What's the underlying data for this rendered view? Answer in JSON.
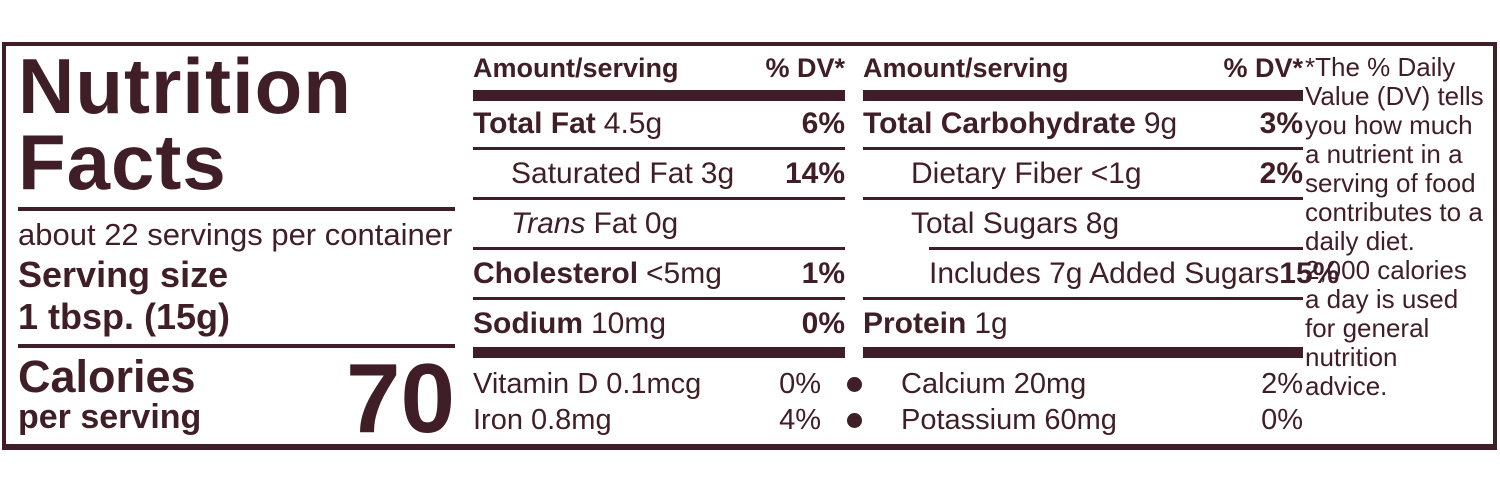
{
  "colors": {
    "ink": "#401E27",
    "background": "#FFFFFF"
  },
  "left_panel": {
    "title_line1": "Nutrition",
    "title_line2": "Facts",
    "servings_per_container": "about 22 servings per container",
    "serving_size_label": "Serving size",
    "serving_size_value": "1 tbsp. (15g)",
    "calories_label": "Calories",
    "calories_sublabel": "per serving",
    "calories_value": "70"
  },
  "column1": {
    "header": {
      "amount": "Amount/serving",
      "dv": "% DV*"
    },
    "rows": [
      {
        "name": "Total Fat",
        "amount": "4.5g",
        "dv": "6%"
      },
      {
        "name": "Saturated Fat",
        "amount": "3g",
        "dv": "14%"
      },
      {
        "name_italic": "Trans",
        "name": "Fat",
        "amount": "0g",
        "dv": ""
      },
      {
        "name": "Cholesterol",
        "amount": "<5mg",
        "dv": "1%"
      },
      {
        "name": "Sodium",
        "amount": "10mg",
        "dv": "0%"
      }
    ],
    "micros": [
      {
        "name": "Vitamin D",
        "amount": "0.1mcg",
        "dv": "0%"
      },
      {
        "name": "Iron",
        "amount": "0.8mg",
        "dv": "4%"
      }
    ]
  },
  "column2": {
    "header": {
      "amount": "Amount/serving",
      "dv": "% DV*"
    },
    "rows": [
      {
        "name": "Total Carbohydrate",
        "amount": "9g",
        "dv": "3%"
      },
      {
        "name": "Dietary Fiber",
        "amount": "<1g",
        "dv": "2%"
      },
      {
        "name": "Total Sugars",
        "amount": "8g",
        "dv": ""
      },
      {
        "name": "Includes 7g Added Sugars",
        "amount": "",
        "dv": "15%"
      },
      {
        "name": "Protein",
        "amount": "1g",
        "dv": ""
      }
    ],
    "micros": [
      {
        "name": "Calcium",
        "amount": "20mg",
        "dv": "2%"
      },
      {
        "name": "Potassium",
        "amount": "60mg",
        "dv": "0%"
      }
    ]
  },
  "footnote": {
    "lines": [
      "*The % Daily",
      "Value (DV) tells",
      "you how much",
      "a nutrient in a",
      "serving of food",
      "contributes to a",
      "daily diet.",
      "2,000 calories",
      "a day is used",
      "for general",
      "nutrition",
      "advice."
    ]
  }
}
